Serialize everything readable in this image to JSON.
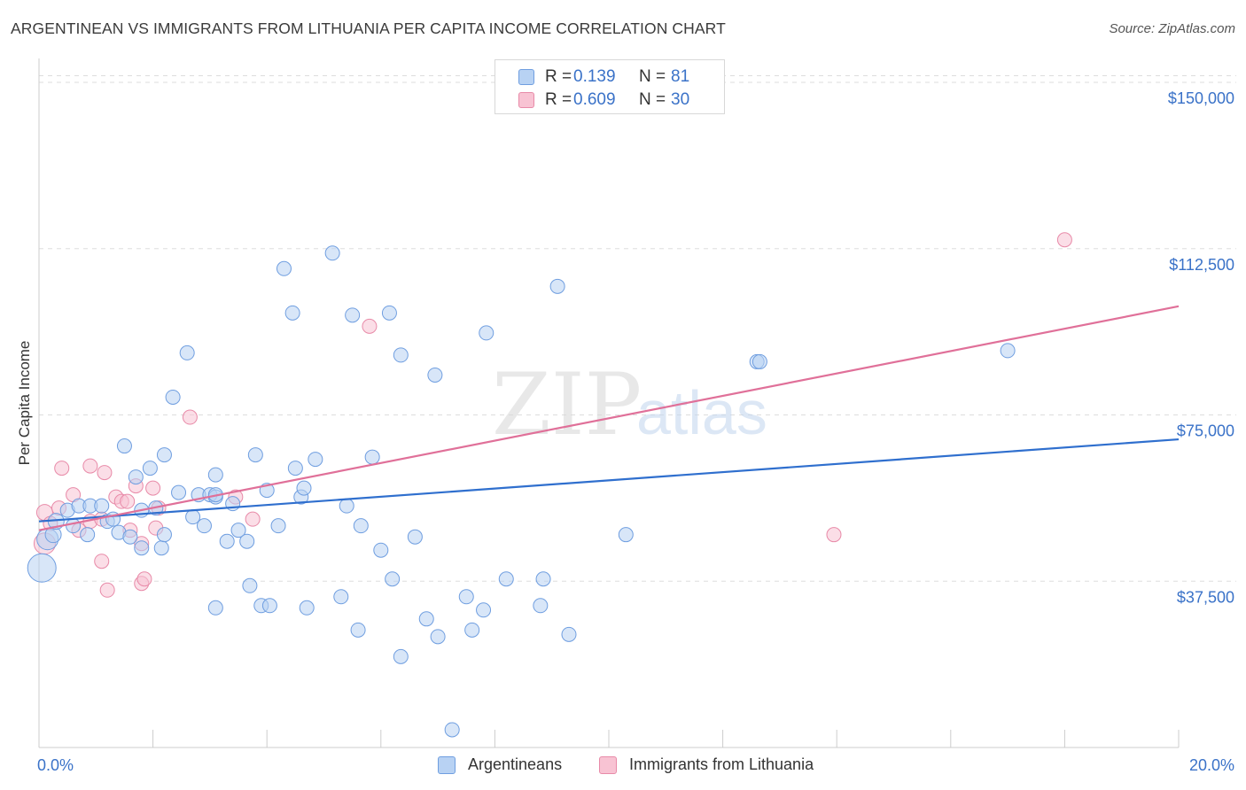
{
  "title": "ARGENTINEAN VS IMMIGRANTS FROM LITHUANIA PER CAPITA INCOME CORRELATION CHART",
  "source": "Source: ZipAtlas.com",
  "watermark": {
    "zip": "ZIP",
    "atlas": "atlas"
  },
  "legend_top": [
    {
      "r_label": "R =",
      "r_value": "0.139",
      "n_label": "N =",
      "n_value": "81"
    },
    {
      "r_label": "R =",
      "r_value": "0.609",
      "n_label": "N =",
      "n_value": "30"
    }
  ],
  "legend_bottom": [
    "Argentineans",
    "Immigrants from Lithuania"
  ],
  "colors": {
    "blue_fill": "#b8d2f3",
    "blue_stroke": "#6f9ee0",
    "blue_line": "#2f6fce",
    "pink_fill": "#f8c3d3",
    "pink_stroke": "#e88aa8",
    "pink_line": "#e07099",
    "axis_label": "#3a72c8",
    "grid": "#dddddd"
  },
  "chart_data": {
    "type": "scatter",
    "title": "ARGENTINEAN VS IMMIGRANTS FROM LITHUANIA PER CAPITA INCOME CORRELATION CHART",
    "xlabel": "",
    "ylabel": "Per Capita Income",
    "xlim": [
      0,
      20
    ],
    "ylim": [
      0,
      153000
    ],
    "x_tick_labels": [
      "0.0%",
      "20.0%"
    ],
    "y_ticks": [
      37500,
      75000,
      112500,
      150000
    ],
    "y_tick_labels": [
      "$37,500",
      "$75,000",
      "$112,500",
      "$150,000"
    ],
    "grid": true,
    "legend_placement": "top-center and bottom",
    "series": [
      {
        "name": "Argentineans",
        "R": 0.139,
        "N": 81,
        "trend": {
          "x": [
            0,
            20
          ],
          "y": [
            51000,
            69500
          ]
        },
        "points": [
          [
            0.05,
            40500,
            16
          ],
          [
            0.15,
            47000,
            12
          ],
          [
            0.25,
            48000,
            9
          ],
          [
            0.3,
            51000,
            9
          ],
          [
            0.5,
            53500,
            8
          ],
          [
            0.6,
            50000,
            8
          ],
          [
            0.7,
            54500,
            8
          ],
          [
            0.85,
            48000,
            8
          ],
          [
            0.9,
            54500,
            8
          ],
          [
            1.1,
            54500,
            8
          ],
          [
            1.2,
            51000,
            8
          ],
          [
            1.3,
            51500,
            8
          ],
          [
            1.4,
            48500,
            8
          ],
          [
            1.5,
            68000,
            8
          ],
          [
            1.6,
            47500,
            8
          ],
          [
            1.7,
            61000,
            8
          ],
          [
            1.8,
            45000,
            8
          ],
          [
            1.8,
            53500,
            8
          ],
          [
            1.95,
            63000,
            8
          ],
          [
            2.05,
            54000,
            8
          ],
          [
            2.15,
            45000,
            8
          ],
          [
            2.2,
            48000,
            8
          ],
          [
            2.2,
            66000,
            8
          ],
          [
            2.35,
            79000,
            8
          ],
          [
            2.45,
            57500,
            8
          ],
          [
            2.6,
            89000,
            8
          ],
          [
            2.7,
            52000,
            8
          ],
          [
            2.8,
            57000,
            8
          ],
          [
            2.9,
            50000,
            8
          ],
          [
            3.0,
            57000,
            8
          ],
          [
            3.1,
            56500,
            8
          ],
          [
            3.1,
            57000,
            8
          ],
          [
            3.1,
            31500,
            8
          ],
          [
            3.1,
            61500,
            8
          ],
          [
            3.3,
            46500,
            8
          ],
          [
            3.4,
            55000,
            8
          ],
          [
            3.5,
            49000,
            8
          ],
          [
            3.65,
            46500,
            8
          ],
          [
            3.7,
            36500,
            8
          ],
          [
            3.8,
            66000,
            8
          ],
          [
            3.9,
            32000,
            8
          ],
          [
            4.0,
            58000,
            8
          ],
          [
            4.05,
            32000,
            8
          ],
          [
            4.2,
            50000,
            8
          ],
          [
            4.3,
            108000,
            8
          ],
          [
            4.45,
            98000,
            8
          ],
          [
            4.5,
            63000,
            8
          ],
          [
            4.6,
            56500,
            8
          ],
          [
            4.65,
            58500,
            8
          ],
          [
            4.7,
            31500,
            8
          ],
          [
            4.85,
            65000,
            8
          ],
          [
            5.15,
            111500,
            8
          ],
          [
            5.3,
            34000,
            8
          ],
          [
            5.4,
            54500,
            8
          ],
          [
            5.5,
            97500,
            8
          ],
          [
            5.6,
            26500,
            8
          ],
          [
            5.65,
            50000,
            8
          ],
          [
            5.85,
            65500,
            8
          ],
          [
            6.0,
            44500,
            8
          ],
          [
            6.15,
            98000,
            8
          ],
          [
            6.2,
            38000,
            8
          ],
          [
            6.35,
            88500,
            8
          ],
          [
            6.35,
            20500,
            8
          ],
          [
            6.6,
            47500,
            8
          ],
          [
            6.8,
            29000,
            8
          ],
          [
            6.95,
            84000,
            8
          ],
          [
            7.0,
            25000,
            8
          ],
          [
            7.25,
            4000,
            8
          ],
          [
            7.5,
            34000,
            8
          ],
          [
            7.6,
            26500,
            8
          ],
          [
            7.8,
            31000,
            8
          ],
          [
            7.85,
            93500,
            8
          ],
          [
            8.2,
            38000,
            8
          ],
          [
            8.8,
            32000,
            8
          ],
          [
            8.85,
            38000,
            8
          ],
          [
            9.1,
            104000,
            8
          ],
          [
            9.3,
            25500,
            8
          ],
          [
            10.3,
            48000,
            8
          ],
          [
            12.6,
            87000,
            8
          ],
          [
            12.65,
            87000,
            8
          ],
          [
            17.0,
            89500,
            8
          ]
        ]
      },
      {
        "name": "Immigrants from Lithuania",
        "R": 0.609,
        "N": 30,
        "trend": {
          "x": [
            0,
            20
          ],
          "y": [
            49000,
            99500
          ]
        },
        "points": [
          [
            0.1,
            46000,
            12
          ],
          [
            0.1,
            53000,
            9
          ],
          [
            0.2,
            50500,
            8
          ],
          [
            0.35,
            54000,
            8
          ],
          [
            0.4,
            63000,
            8
          ],
          [
            0.6,
            57000,
            8
          ],
          [
            0.7,
            49000,
            8
          ],
          [
            0.9,
            51000,
            8
          ],
          [
            0.9,
            63500,
            8
          ],
          [
            1.1,
            42000,
            8
          ],
          [
            1.1,
            51500,
            8
          ],
          [
            1.15,
            62000,
            8
          ],
          [
            1.2,
            35500,
            8
          ],
          [
            1.35,
            56500,
            8
          ],
          [
            1.45,
            55500,
            8
          ],
          [
            1.55,
            55500,
            8
          ],
          [
            1.6,
            49000,
            8
          ],
          [
            1.7,
            59000,
            8
          ],
          [
            1.8,
            46000,
            8
          ],
          [
            1.8,
            37000,
            8
          ],
          [
            1.85,
            38000,
            8
          ],
          [
            2.0,
            58500,
            8
          ],
          [
            2.05,
            49500,
            8
          ],
          [
            2.1,
            54000,
            8
          ],
          [
            2.65,
            74500,
            8
          ],
          [
            3.45,
            56500,
            8
          ],
          [
            3.75,
            51500,
            8
          ],
          [
            5.8,
            95000,
            8
          ],
          [
            13.95,
            48000,
            8
          ],
          [
            18.0,
            114500,
            8
          ]
        ]
      }
    ]
  }
}
